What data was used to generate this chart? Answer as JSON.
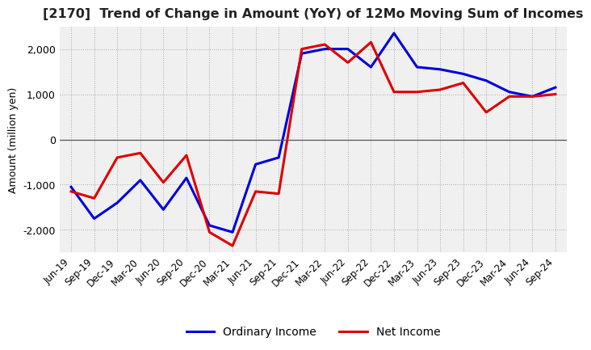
{
  "title": "[2170]  Trend of Change in Amount (YoY) of 12Mo Moving Sum of Incomes",
  "ylabel": "Amount (million yen)",
  "x_labels": [
    "Jun-19",
    "Sep-19",
    "Dec-19",
    "Mar-20",
    "Jun-20",
    "Sep-20",
    "Dec-20",
    "Mar-21",
    "Jun-21",
    "Sep-21",
    "Dec-21",
    "Mar-22",
    "Jun-22",
    "Sep-22",
    "Dec-22",
    "Mar-23",
    "Jun-23",
    "Sep-23",
    "Dec-23",
    "Mar-24",
    "Jun-24",
    "Sep-24"
  ],
  "ordinary_income": [
    -1050,
    -1750,
    -1400,
    -900,
    -1550,
    -850,
    -1900,
    -2050,
    -550,
    -400,
    1900,
    2000,
    2000,
    1600,
    2350,
    1600,
    1550,
    1450,
    1300,
    1050,
    950,
    1150
  ],
  "net_income": [
    -1150,
    -1300,
    -400,
    -300,
    -950,
    -350,
    -2050,
    -2350,
    -1150,
    -1200,
    2000,
    2100,
    1700,
    2150,
    1050,
    1050,
    1100,
    1250,
    600,
    950,
    950,
    1000
  ],
  "ordinary_color": "#0000dd",
  "net_color": "#dd0000",
  "ylim": [
    -2500,
    2500
  ],
  "yticks": [
    -2000,
    -1000,
    0,
    1000,
    2000
  ],
  "plot_bg_color": "#f0f0f0",
  "background_color": "#ffffff",
  "grid_color": "#aaaaaa",
  "legend_labels": [
    "Ordinary Income",
    "Net Income"
  ]
}
